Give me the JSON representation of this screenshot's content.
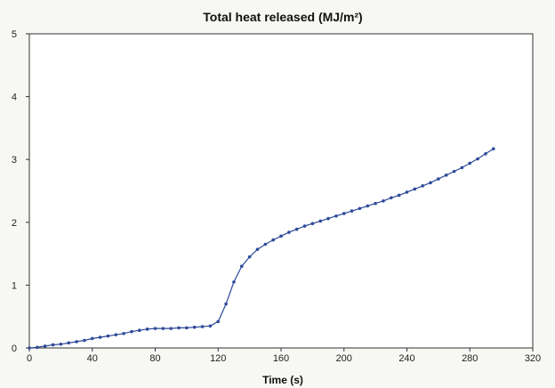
{
  "chart_data": {
    "type": "line",
    "title": "Total heat released (MJ/m²)",
    "xlabel": "Time (s)",
    "ylabel": "",
    "xlim": [
      0,
      320
    ],
    "ylim": [
      0,
      5
    ],
    "xticks": [
      "0",
      "40",
      "80",
      "120",
      "160",
      "200",
      "240",
      "280",
      "320"
    ],
    "yticks": [
      "0",
      "1",
      "2",
      "3",
      "4",
      "5"
    ],
    "grid": false,
    "series_color": "#2e4a9a",
    "series": [
      {
        "x": [
          0,
          5,
          10,
          15,
          20,
          25,
          30,
          35,
          40,
          45,
          50,
          55,
          60,
          65,
          70,
          75,
          80,
          85,
          90,
          95,
          100,
          105,
          110,
          115,
          120,
          125,
          130,
          135,
          140,
          145,
          150,
          155,
          160,
          165,
          170,
          175,
          180,
          185,
          190,
          195,
          200,
          205,
          210,
          215,
          220,
          225,
          230,
          235,
          240,
          245,
          250,
          255,
          260,
          265,
          270,
          275,
          280,
          285,
          290,
          295
        ],
        "y": [
          0.0,
          0.01,
          0.03,
          0.05,
          0.06,
          0.08,
          0.1,
          0.12,
          0.15,
          0.17,
          0.19,
          0.21,
          0.23,
          0.26,
          0.28,
          0.3,
          0.31,
          0.31,
          0.31,
          0.32,
          0.32,
          0.33,
          0.34,
          0.35,
          0.42,
          0.7,
          1.05,
          1.3,
          1.45,
          1.57,
          1.65,
          1.72,
          1.78,
          1.84,
          1.89,
          1.94,
          1.98,
          2.02,
          2.06,
          2.1,
          2.14,
          2.18,
          2.22,
          2.26,
          2.3,
          2.34,
          2.39,
          2.43,
          2.48,
          2.53,
          2.58,
          2.63,
          2.69,
          2.75,
          2.81,
          2.87,
          2.94,
          3.01,
          3.09,
          3.17
        ]
      }
    ]
  }
}
